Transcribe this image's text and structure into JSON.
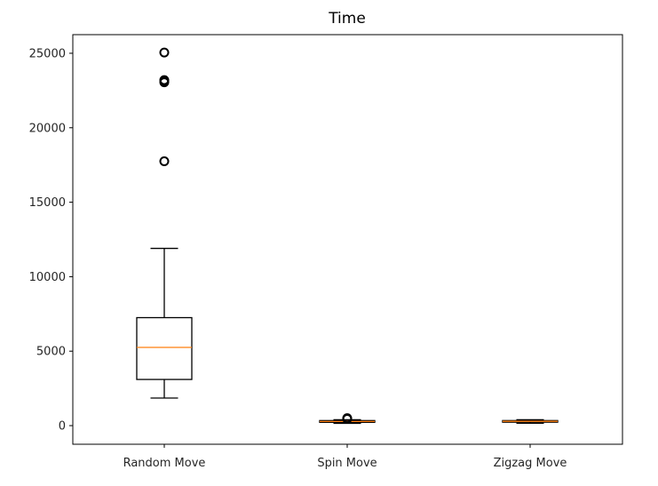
{
  "chart_data": {
    "type": "boxplot",
    "title": "Time",
    "xlabel": "",
    "ylabel": "",
    "ylim": [
      -1250,
      26250
    ],
    "yticks": [
      0,
      5000,
      10000,
      15000,
      20000,
      25000
    ],
    "grid": false,
    "categories": [
      "Random Move",
      "Spin Move",
      "Zigzag Move"
    ],
    "boxes": [
      {
        "whisker_low": 1850,
        "q1": 3100,
        "median": 5250,
        "q3": 7250,
        "whisker_high": 11900,
        "outliers": [
          17750,
          23050,
          23150,
          23200,
          25050
        ]
      },
      {
        "whisker_low": 150,
        "q1": 220,
        "median": 280,
        "q3": 340,
        "whisker_high": 400,
        "outliers": [
          450,
          500
        ]
      },
      {
        "whisker_low": 160,
        "q1": 230,
        "median": 290,
        "q3": 340,
        "whisker_high": 400,
        "outliers": []
      }
    ],
    "colors": {
      "box": "#000000",
      "median": "#ff7f0e",
      "outlier": "#000000"
    }
  }
}
